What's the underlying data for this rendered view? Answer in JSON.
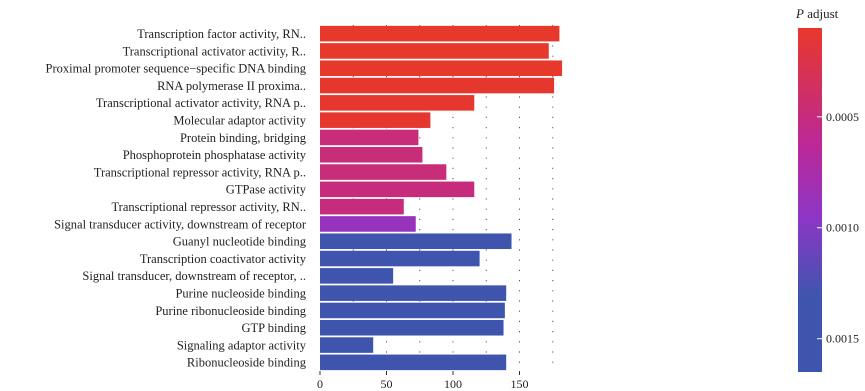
{
  "chart_data": {
    "type": "bar",
    "orientation": "horizontal",
    "title": "",
    "xlabel": "",
    "ylabel": "",
    "xlim": [
      0,
      190
    ],
    "x_ticks": [
      0,
      50,
      100,
      150
    ],
    "grid": "dotted vertical",
    "categories": [
      "Transcription factor activity, RN..",
      "Transcriptional activator activity, R..",
      "Proximal promoter sequence−specific DNA binding",
      "RNA polymerase II proxima..",
      "Transcriptional activator activity, RNA p..",
      "Molecular adaptor activity",
      "Protein binding, bridging",
      "Phosphoprotein phosphatase activity",
      "Transcriptional repressor activity, RNA p..",
      "GTPase activity",
      "Transcriptional repressor activity, RN..",
      "Signal transducer activity, downstream of receptor",
      "Guanyl nucleotide binding",
      "Transcription coactivator activity",
      "Signal transducer, downstream of receptor, ..",
      "Purine nucleoside binding",
      "Purine ribonucleoside binding",
      "GTP binding",
      "Signaling adaptor activity",
      "Ribonucleoside binding"
    ],
    "values": [
      180,
      172,
      182,
      176,
      116,
      83,
      74,
      77,
      95,
      116,
      63,
      72,
      144,
      120,
      55,
      140,
      139,
      138,
      40,
      140
    ],
    "p_adjust": [
      0.00011,
      0.00011,
      0.00011,
      0.00012,
      0.00012,
      0.00013,
      0.00048,
      0.00048,
      0.00048,
      0.00049,
      0.00049,
      0.00088,
      0.00152,
      0.00152,
      0.00152,
      0.00152,
      0.00152,
      0.00152,
      0.00152,
      0.00152
    ],
    "legend": {
      "title_italic": "P",
      "title_rest": " adjust",
      "position": "right",
      "ticks": [
        {
          "label": "0.0005",
          "value": 0.0005
        },
        {
          "label": "0.0010",
          "value": 0.001
        },
        {
          "label": "0.0015",
          "value": 0.0015
        }
      ],
      "range": [
        0.0001,
        0.00165
      ],
      "colors": [
        "#e8382a",
        "#b9289a",
        "#8d36c6",
        "#3f55ad",
        "#3f55ad"
      ],
      "color_stops": [
        0.0,
        0.35,
        0.55,
        0.78,
        1.0
      ]
    }
  }
}
